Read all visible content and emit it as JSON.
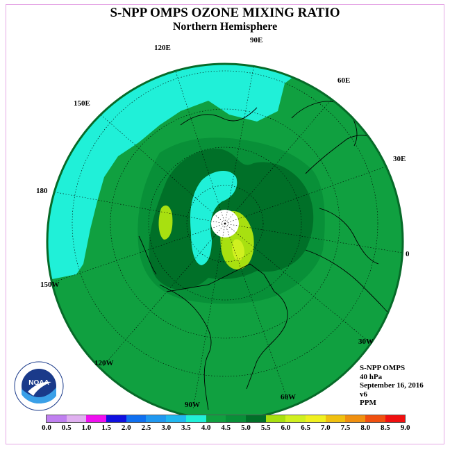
{
  "title": "S-NPP OMPS OZONE MIXING RATIO",
  "subtitle": "Northern Hemisphere",
  "longitude_labels": [
    "90E",
    "60E",
    "30E",
    "0",
    "30W",
    "60W",
    "90W",
    "120W",
    "150W",
    "180",
    "150E",
    "120E"
  ],
  "info": {
    "instrument": "S-NPP OMPS",
    "pressure": "40 hPa",
    "date": "September 16, 2016",
    "version": "v6",
    "units": "PPM"
  },
  "logo": {
    "text": "NOAA",
    "ring_text": "NATIONAL OCEANIC AND ATMOSPHERIC ADMINISTRATION · U.S. DEPARTMENT OF COMMERCE"
  },
  "colorbar": {
    "ticks": [
      "0.0",
      "0.5",
      "1.0",
      "1.5",
      "2.0",
      "2.5",
      "3.0",
      "3.5",
      "4.0",
      "4.5",
      "5.0",
      "5.5",
      "6.0",
      "6.5",
      "7.0",
      "7.5",
      "8.0",
      "8.5",
      "9.0"
    ],
    "colors": [
      "#c080f0",
      "#e0b0f0",
      "#f010f0",
      "#1010e0",
      "#1070f0",
      "#2098f0",
      "#20b8f0",
      "#20f0d8",
      "#10a040",
      "#089038",
      "#007028",
      "#a8e010",
      "#d0f020",
      "#f0f020",
      "#f0c010",
      "#f09010",
      "#f05010",
      "#f01010",
      "#7a5030"
    ]
  },
  "map_colors": {
    "range_3_5_4_0": "#20f0d8",
    "range_4_0_4_5": "#10a040",
    "range_4_5_5_0": "#089038",
    "range_5_0_5_5": "#007028",
    "range_5_5_6_0": "#a8e010",
    "range_6_0_6_5": "#d0f020",
    "no_data": "#ffffff"
  }
}
